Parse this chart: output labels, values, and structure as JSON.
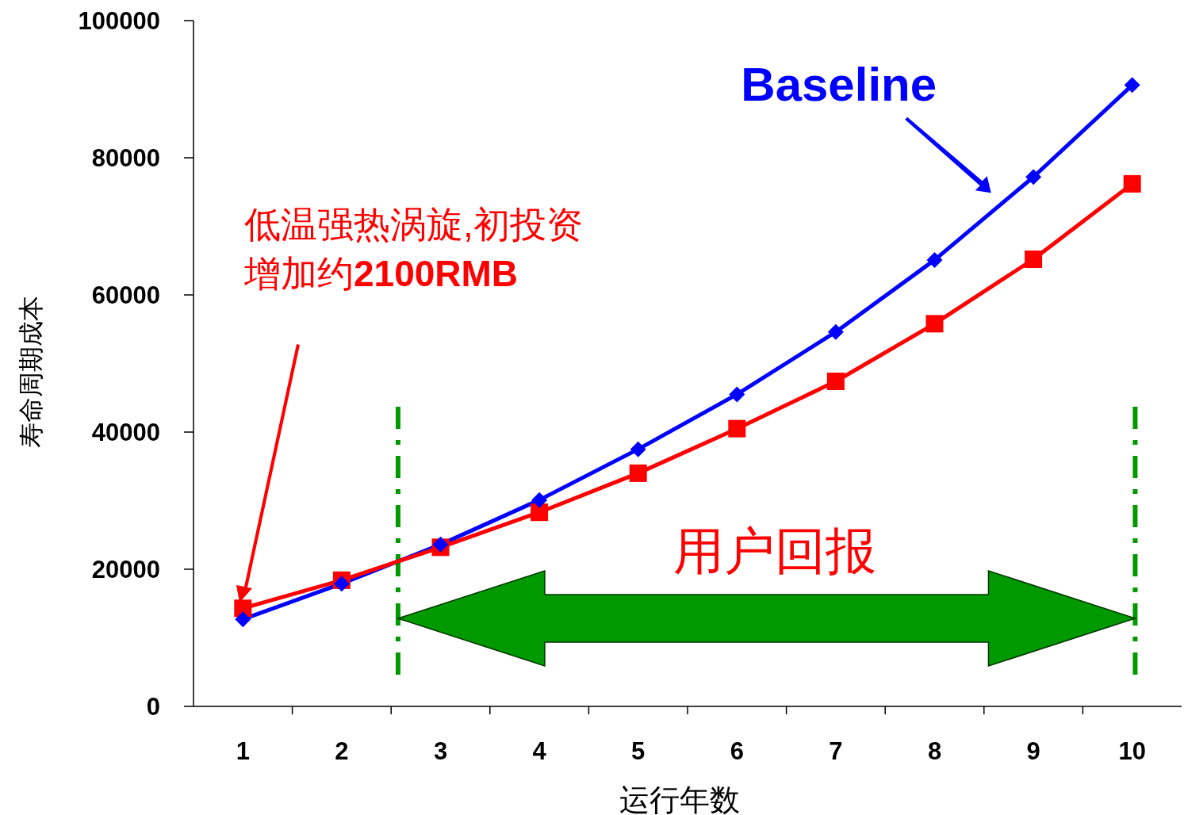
{
  "chart_data": {
    "type": "line",
    "xlabel": "运行年数",
    "ylabel": "寿命周期成本",
    "x": [
      1,
      2,
      3,
      4,
      5,
      6,
      7,
      8,
      9,
      10
    ],
    "xlim": [
      0.5,
      10.5
    ],
    "xticks": [
      1,
      {
        "value": 1.5,
        "label": null
      },
      2,
      {
        "value": 2.5,
        "label": null
      },
      3,
      {
        "value": 3.5,
        "label": null
      },
      4,
      {
        "value": 4.5,
        "label": null
      },
      5,
      {
        "value": 5.5,
        "label": null
      },
      6,
      {
        "value": 6.5,
        "label": null
      },
      7,
      {
        "value": 7.5,
        "label": null
      },
      8,
      {
        "value": 8.5,
        "label": null
      },
      9,
      {
        "value": 9.5,
        "label": null
      },
      10
    ],
    "ylim": [
      0,
      100000
    ],
    "yticks": [
      0,
      20000,
      40000,
      60000,
      80000,
      100000
    ],
    "grid": false,
    "legend": false,
    "line_style": "solid",
    "series": [
      {
        "name": "Baseline",
        "color": "#0000ff",
        "marker": "diamond",
        "values": [
          12700,
          17900,
          23600,
          30100,
          37500,
          45500,
          54600,
          65100,
          77200,
          90600
        ]
      },
      {
        "color": "#ff0000",
        "marker": "square",
        "values": [
          14300,
          18400,
          23200,
          28300,
          34000,
          40500,
          47400,
          55800,
          65200,
          76200
        ]
      }
    ],
    "ref_lines": [
      {
        "axis": "x",
        "value": 2.57,
        "color": "#009900",
        "line_style": "dashed"
      },
      {
        "axis": "x",
        "value": 10.03,
        "color": "#009900",
        "line_style": "dashed"
      }
    ],
    "annotations": [
      "低温强热涡旋,初投资增加约**2100RMB**",
      "用户回报"
    ]
  }
}
